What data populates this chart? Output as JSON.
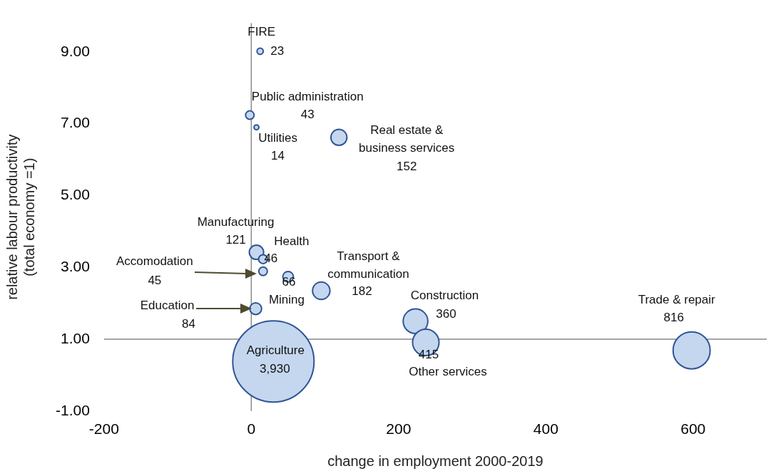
{
  "chart_data": {
    "type": "bubble",
    "xlabel": "change in employment 2000-2019",
    "ylabel": "relative labour productivity\n(total economy =1)",
    "xlim": [
      -200,
      700
    ],
    "xticks": [
      -200,
      0,
      200,
      400,
      600
    ],
    "ylim": [
      -1,
      9.8
    ],
    "yticks": [
      {
        "value": -1,
        "label": "-1.00"
      },
      {
        "value": 1,
        "label": "1.00"
      },
      {
        "value": 3,
        "label": "3.00"
      },
      {
        "value": 5,
        "label": "5.00"
      },
      {
        "value": 7,
        "label": "7.00"
      },
      {
        "value": 9,
        "label": "9.00"
      }
    ],
    "grid": false,
    "legend": false,
    "ref_lines": [
      {
        "axis": "y",
        "value": 1,
        "color": "#898989"
      },
      {
        "axis": "x",
        "value": 0,
        "color": "#898989"
      }
    ],
    "series": [
      {
        "color": "#c5d7ee",
        "x": [
          12,
          -2,
          7,
          119,
          7,
          16,
          16,
          50,
          95,
          6,
          223,
          237,
          598,
          30
        ],
        "values": [
          9.02,
          7.24,
          6.9,
          6.62,
          3.42,
          3.23,
          2.89,
          2.74,
          2.35,
          1.85,
          1.5,
          0.91,
          0.69,
          0.38
        ],
        "sizes": [
          0.0059,
          0.011,
          0.0036,
          0.039,
          0.031,
          0.012,
          0.011,
          0.017,
          0.046,
          0.021,
          0.092,
          0.106,
          0.208,
          1
        ]
      }
    ],
    "annotations": [
      {
        "text": "FIRE\n23",
        "x": 12,
        "y": 9.02
      },
      {
        "text": "Public administration\n43",
        "x": -2,
        "y": 7.24
      },
      {
        "text": "Utilities\n14",
        "x": 7,
        "y": 6.9
      },
      {
        "text": "Real estate &\nbusiness services\n152",
        "x": 119,
        "y": 6.62
      },
      {
        "text": "Manufacturing\n121",
        "x": 7,
        "y": 3.42
      },
      {
        "text": "Health\n46",
        "x": 16,
        "y": 3.23
      },
      "Accomodation\n45",
      {
        "text": "Mining\n66",
        "x": 50,
        "y": 2.74
      },
      {
        "text": "Transport &\ncommunication\n182",
        "x": 95,
        "y": 2.35
      },
      "Education\n84",
      {
        "text": "Construction\n360",
        "x": 223,
        "y": 1.5
      },
      {
        "text": "Other services\n415",
        "x": 237,
        "y": 0.91
      },
      "Trade & repair\n816",
      {
        "text": "Agriculture\n3,930",
        "x": 30,
        "y": 0.38
      }
    ]
  }
}
